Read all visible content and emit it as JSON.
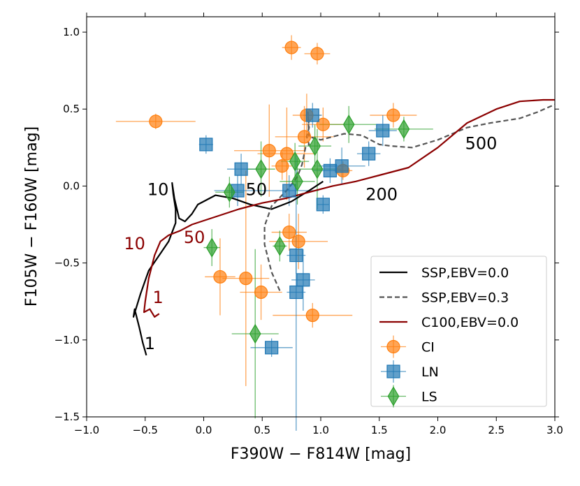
{
  "chart_data": {
    "type": "scatter",
    "xlabel": "F390W − F814W [mag]",
    "ylabel": "F105W − F160W [mag]",
    "xlim": [
      -1.0,
      3.0
    ],
    "ylim": [
      -1.5,
      1.1
    ],
    "x_ticks": [
      -1.0,
      -0.5,
      0.0,
      0.5,
      1.0,
      1.5,
      2.0,
      2.5,
      3.0
    ],
    "x_tick_labels": [
      "−1.0",
      "−0.5",
      "0.0",
      "0.5",
      "1.0",
      "1.5",
      "2.0",
      "2.5",
      "3.0"
    ],
    "y_ticks": [
      -1.5,
      -1.0,
      -0.5,
      0.0,
      0.5,
      1.0
    ],
    "y_tick_labels": [
      "−1.5",
      "−1.0",
      "−0.5",
      "0.0",
      "0.5",
      "1.0"
    ],
    "grid": false,
    "legend_placement": "lower-right",
    "colors": {
      "CI": "#ff7f0e",
      "LN": "#1f77b4",
      "LS": "#2ca02c",
      "SSP0": "#000000",
      "SSP03": "#555555",
      "C100": "#8b0000"
    },
    "tracks": [
      {
        "name": "SSP,EBV=0.0",
        "style": "solid",
        "color": "#000000",
        "points": [
          [
            -0.49,
            -1.1
          ],
          [
            -0.52,
            -1.02
          ],
          [
            -0.55,
            -0.92
          ],
          [
            -0.59,
            -0.8
          ],
          [
            -0.6,
            -0.85
          ],
          [
            -0.54,
            -0.7
          ],
          [
            -0.47,
            -0.55
          ],
          [
            -0.38,
            -0.45
          ],
          [
            -0.3,
            -0.36
          ],
          [
            -0.24,
            -0.24
          ],
          [
            -0.24,
            -0.15
          ],
          [
            -0.26,
            -0.05
          ],
          [
            -0.27,
            0.02
          ],
          [
            -0.25,
            -0.08
          ],
          [
            -0.21,
            -0.21
          ],
          [
            -0.16,
            -0.23
          ],
          [
            -0.1,
            -0.18
          ],
          [
            -0.05,
            -0.12
          ],
          [
            0.1,
            -0.06
          ],
          [
            0.25,
            -0.08
          ],
          [
            0.4,
            -0.12
          ],
          [
            0.58,
            -0.15
          ],
          [
            0.75,
            -0.1
          ],
          [
            0.9,
            -0.03
          ],
          [
            1.02,
            0.03
          ]
        ]
      },
      {
        "name": "SSP,EBV=0.3",
        "style": "dashed",
        "color": "#555555",
        "points": [
          [
            0.65,
            -0.68
          ],
          [
            0.58,
            -0.56
          ],
          [
            0.52,
            -0.38
          ],
          [
            0.52,
            -0.26
          ],
          [
            0.58,
            -0.13
          ],
          [
            0.72,
            -0.02
          ],
          [
            0.8,
            0.06
          ],
          [
            0.84,
            0.14
          ],
          [
            0.87,
            0.25
          ],
          [
            0.9,
            0.27
          ],
          [
            0.88,
            0.32
          ],
          [
            0.9,
            0.38
          ],
          [
            0.89,
            0.48
          ],
          [
            0.9,
            0.32
          ],
          [
            1.0,
            0.3
          ],
          [
            1.1,
            0.32
          ],
          [
            1.2,
            0.34
          ],
          [
            1.35,
            0.33
          ],
          [
            1.5,
            0.27
          ],
          [
            1.6,
            0.26
          ],
          [
            1.78,
            0.25
          ],
          [
            2.0,
            0.3
          ],
          [
            2.25,
            0.38
          ],
          [
            2.45,
            0.41
          ],
          [
            2.7,
            0.44
          ],
          [
            2.85,
            0.48
          ],
          [
            3.0,
            0.53
          ]
        ]
      },
      {
        "name": "C100,EBV=0.0",
        "style": "solid",
        "color": "#8b0000",
        "points": [
          [
            -0.38,
            -0.83
          ],
          [
            -0.42,
            -0.85
          ],
          [
            -0.46,
            -0.8
          ],
          [
            -0.51,
            -0.82
          ],
          [
            -0.5,
            -0.75
          ],
          [
            -0.47,
            -0.6
          ],
          [
            -0.42,
            -0.45
          ],
          [
            -0.37,
            -0.36
          ],
          [
            -0.3,
            -0.32
          ],
          [
            -0.2,
            -0.29
          ],
          [
            -0.1,
            -0.25
          ],
          [
            0.1,
            -0.2
          ],
          [
            0.3,
            -0.15
          ],
          [
            0.5,
            -0.11
          ],
          [
            0.7,
            -0.08
          ],
          [
            0.9,
            -0.04
          ],
          [
            1.1,
            0.0
          ],
          [
            1.3,
            0.03
          ],
          [
            1.5,
            0.07
          ],
          [
            1.75,
            0.12
          ],
          [
            2.0,
            0.25
          ],
          [
            2.25,
            0.41
          ],
          [
            2.5,
            0.5
          ],
          [
            2.7,
            0.55
          ],
          [
            2.9,
            0.56
          ],
          [
            3.0,
            0.56
          ]
        ]
      }
    ],
    "age_labels": [
      {
        "text": "10",
        "x": -0.39,
        "y": -0.06,
        "color": "#000000"
      },
      {
        "text": "50",
        "x": 0.45,
        "y": -0.06,
        "color": "#000000"
      },
      {
        "text": "200",
        "x": 1.52,
        "y": -0.09,
        "color": "#000000"
      },
      {
        "text": "500",
        "x": 2.37,
        "y": 0.24,
        "color": "#000000"
      },
      {
        "text": "1",
        "x": -0.46,
        "y": -1.06,
        "color": "#000000"
      },
      {
        "text": "10",
        "x": -0.59,
        "y": -0.41,
        "color": "#8b0000"
      },
      {
        "text": "50",
        "x": -0.08,
        "y": -0.37,
        "color": "#8b0000"
      },
      {
        "text": "1",
        "x": -0.39,
        "y": -0.76,
        "color": "#8b0000"
      }
    ],
    "series": [
      {
        "name": "CI",
        "marker": "circle",
        "color": "#ff7f0e",
        "points": [
          {
            "x": 0.75,
            "y": 0.9,
            "xerr": 0.08,
            "yerr": 0.08
          },
          {
            "x": 0.97,
            "y": 0.86,
            "xerr": 0.11,
            "yerr": 0.07
          },
          {
            "x": -0.41,
            "y": 0.42,
            "xerr": 0.34,
            "yerr": 0.05
          },
          {
            "x": 0.88,
            "y": 0.46,
            "xerr": 0.12,
            "yerr": 0.14
          },
          {
            "x": 1.02,
            "y": 0.4,
            "xerr": 0.18,
            "yerr": 0.11
          },
          {
            "x": 1.62,
            "y": 0.46,
            "xerr": 0.2,
            "yerr": 0.08
          },
          {
            "x": 0.86,
            "y": 0.32,
            "xerr": 0.25,
            "yerr": 0.2
          },
          {
            "x": 0.56,
            "y": 0.23,
            "xerr": 0.3,
            "yerr": 0.3
          },
          {
            "x": 0.71,
            "y": 0.21,
            "xerr": 0.25,
            "yerr": 0.3
          },
          {
            "x": 0.67,
            "y": 0.13,
            "xerr": 0.09,
            "yerr": 0.09
          },
          {
            "x": 1.19,
            "y": 0.1,
            "xerr": 0.08,
            "yerr": 0.06
          },
          {
            "x": 0.73,
            "y": -0.3,
            "xerr": 0.15,
            "yerr": 0.12
          },
          {
            "x": 0.81,
            "y": -0.36,
            "xerr": 0.25,
            "yerr": 0.18
          },
          {
            "x": 0.14,
            "y": -0.59,
            "xerr": 0.13,
            "yerr": 0.25
          },
          {
            "x": 0.36,
            "y": -0.6,
            "xerr": 0.2,
            "yerr": 0.7
          },
          {
            "x": 0.49,
            "y": -0.69,
            "xerr": 0.18,
            "yerr": 0.18
          },
          {
            "x": 0.93,
            "y": -0.84,
            "xerr": 0.34,
            "yerr": 0.08
          }
        ]
      },
      {
        "name": "LN",
        "marker": "square",
        "color": "#1f77b4",
        "points": [
          {
            "x": 0.93,
            "y": 0.46,
            "xerr": 0.08,
            "yerr": 0.08
          },
          {
            "x": 1.53,
            "y": 0.36,
            "xerr": 0.12,
            "yerr": 0.1
          },
          {
            "x": 0.02,
            "y": 0.27,
            "xerr": 0.06,
            "yerr": 0.06
          },
          {
            "x": 1.41,
            "y": 0.21,
            "xerr": 0.1,
            "yerr": 0.08
          },
          {
            "x": 0.32,
            "y": 0.11,
            "xerr": 0.12,
            "yerr": 0.1
          },
          {
            "x": 1.18,
            "y": 0.13,
            "xerr": 0.2,
            "yerr": 0.12
          },
          {
            "x": 1.08,
            "y": 0.1,
            "xerr": 0.15,
            "yerr": 0.08
          },
          {
            "x": 0.29,
            "y": -0.03,
            "xerr": 0.2,
            "yerr": 0.1
          },
          {
            "x": 0.73,
            "y": -0.03,
            "xerr": 0.25,
            "yerr": 0.1
          },
          {
            "x": 1.02,
            "y": -0.12,
            "xerr": 0.05,
            "yerr": 0.06
          },
          {
            "x": 0.79,
            "y": -0.45,
            "xerr": 0.08,
            "yerr": 0.12
          },
          {
            "x": 0.85,
            "y": -0.61,
            "xerr": 0.1,
            "yerr": 0.2
          },
          {
            "x": 0.79,
            "y": -0.69,
            "xerr": 0.08,
            "yerr": 0.9
          },
          {
            "x": 0.58,
            "y": -1.05,
            "xerr": 0.18,
            "yerr": 0.06
          }
        ]
      },
      {
        "name": "LS",
        "marker": "diamond",
        "color": "#2ca02c",
        "points": [
          {
            "x": 1.24,
            "y": 0.4,
            "xerr": 0.25,
            "yerr": 0.12
          },
          {
            "x": 1.71,
            "y": 0.37,
            "xerr": 0.25,
            "yerr": 0.08
          },
          {
            "x": 0.95,
            "y": 0.26,
            "xerr": 0.14,
            "yerr": 0.14
          },
          {
            "x": 0.49,
            "y": 0.11,
            "xerr": 0.12,
            "yerr": 0.18
          },
          {
            "x": 0.78,
            "y": 0.16,
            "xerr": 0.12,
            "yerr": 0.12
          },
          {
            "x": 0.97,
            "y": 0.11,
            "xerr": 0.2,
            "yerr": 0.26
          },
          {
            "x": 0.22,
            "y": -0.04,
            "xerr": 0.12,
            "yerr": 0.1
          },
          {
            "x": 0.8,
            "y": 0.03,
            "xerr": 0.15,
            "yerr": 0.15
          },
          {
            "x": 0.07,
            "y": -0.4,
            "xerr": 0.07,
            "yerr": 0.12
          },
          {
            "x": 0.65,
            "y": -0.39,
            "xerr": 0.06,
            "yerr": 0.1
          },
          {
            "x": 0.44,
            "y": -0.96,
            "xerr": 0.2,
            "yerr": 0.55
          }
        ]
      }
    ],
    "legend": [
      "SSP,EBV=0.0",
      "SSP,EBV=0.3",
      "C100,EBV=0.0",
      "CI",
      "LN",
      "LS"
    ]
  }
}
